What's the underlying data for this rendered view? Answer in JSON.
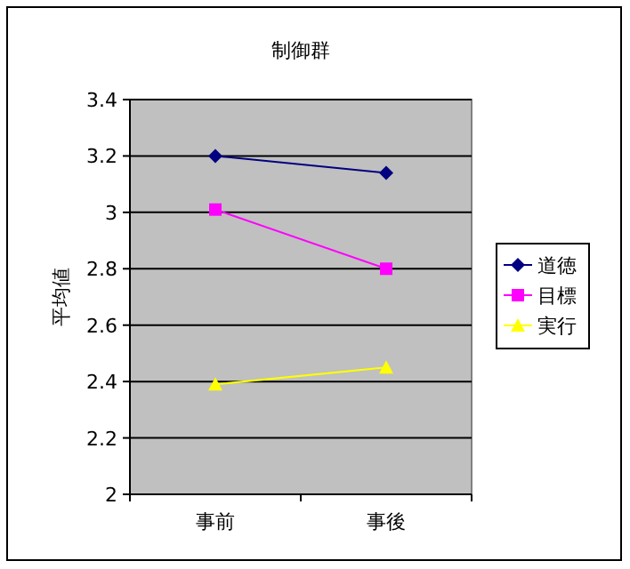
{
  "chart_data": {
    "type": "line",
    "title": "制御群",
    "ylabel": "平均値",
    "categories": [
      "事前",
      "事後"
    ],
    "series": [
      {
        "name": "道徳",
        "color": "#000080",
        "marker": "diamond",
        "values": [
          3.2,
          3.14
        ]
      },
      {
        "name": "目標",
        "color": "#ff00ff",
        "marker": "square",
        "values": [
          3.01,
          2.8
        ]
      },
      {
        "name": "実行",
        "color": "#ffff00",
        "marker": "triangle",
        "values": [
          2.39,
          2.45
        ]
      }
    ],
    "ylim": [
      2,
      3.4
    ],
    "yticks": [
      2,
      2.2,
      2.4,
      2.6,
      2.8,
      3,
      3.2,
      3.4
    ],
    "grid": "y",
    "legend": "right",
    "line_style": "solid"
  }
}
